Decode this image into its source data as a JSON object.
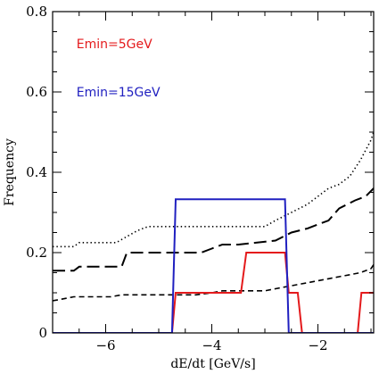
{
  "chart_data": {
    "type": "line",
    "xlabel": "dE/dt [GeV/s]",
    "ylabel": "Frequency",
    "xlim": [
      -7,
      -0.95
    ],
    "ylim": [
      0,
      0.8
    ],
    "xticks": [
      -6,
      -4,
      -2
    ],
    "xtick_labels": [
      "−6",
      "−4",
      "−2"
    ],
    "yticks": [
      0,
      0.2,
      0.4,
      0.6,
      0.8
    ],
    "ytick_labels": [
      "0",
      "0.2",
      "0.4",
      "0.6",
      "0.8"
    ],
    "grid": false,
    "legend_position": "top-left",
    "legend": [
      {
        "label": "Emin=5GeV",
        "color": "#e41a1c"
      },
      {
        "label": "Emin=15GeV",
        "color": "#2020c0"
      }
    ],
    "series": [
      {
        "name": "Emin=5GeV",
        "style": "solid",
        "color": "#e41a1c",
        "x": [
          -7.0,
          -4.75,
          -4.68,
          -3.45,
          -3.35,
          -2.62,
          -2.55,
          -2.38,
          -2.3,
          -1.25,
          -1.18,
          -0.95
        ],
        "y": [
          0.0,
          0.0,
          0.1,
          0.1,
          0.2,
          0.2,
          0.1,
          0.1,
          0.0,
          0.0,
          0.1,
          0.1
        ]
      },
      {
        "name": "Emin=15GeV",
        "style": "solid",
        "color": "#2020c0",
        "x": [
          -7.0,
          -4.75,
          -4.68,
          -2.62,
          -2.55,
          -0.95
        ],
        "y": [
          0.0,
          0.0,
          0.333,
          0.333,
          0.0,
          0.0
        ]
      },
      {
        "style": "dotted",
        "color": "#000000",
        "x": [
          -7.0,
          -6.6,
          -6.5,
          -5.8,
          -5.6,
          -5.4,
          -5.2,
          -3.0,
          -2.8,
          -2.5,
          -2.2,
          -2.0,
          -1.8,
          -1.6,
          -1.4,
          -1.2,
          -1.0,
          -0.95
        ],
        "y": [
          0.215,
          0.215,
          0.225,
          0.225,
          0.24,
          0.255,
          0.265,
          0.265,
          0.28,
          0.3,
          0.32,
          0.34,
          0.36,
          0.37,
          0.39,
          0.43,
          0.48,
          0.5
        ]
      },
      {
        "style": "long-dashed",
        "color": "#000000",
        "x": [
          -7.0,
          -6.6,
          -6.5,
          -5.7,
          -5.6,
          -5.0,
          -4.2,
          -4.0,
          -3.8,
          -3.5,
          -2.8,
          -2.5,
          -2.2,
          -1.8,
          -1.6,
          -1.3,
          -1.1,
          -0.95
        ],
        "y": [
          0.155,
          0.155,
          0.165,
          0.165,
          0.2,
          0.2,
          0.2,
          0.21,
          0.22,
          0.22,
          0.23,
          0.25,
          0.26,
          0.28,
          0.31,
          0.33,
          0.34,
          0.36
        ]
      },
      {
        "style": "short-dashed",
        "color": "#000000",
        "x": [
          -7.0,
          -6.8,
          -6.6,
          -5.9,
          -5.7,
          -5.0,
          -4.3,
          -4.0,
          -3.8,
          -3.0,
          -2.8,
          -2.4,
          -2.2,
          -2.0,
          -1.8,
          -1.6,
          -1.4,
          -1.2,
          -1.0,
          -0.95
        ],
        "y": [
          0.08,
          0.085,
          0.09,
          0.09,
          0.095,
          0.095,
          0.095,
          0.1,
          0.105,
          0.105,
          0.11,
          0.12,
          0.125,
          0.13,
          0.135,
          0.14,
          0.145,
          0.15,
          0.16,
          0.17
        ]
      }
    ]
  }
}
